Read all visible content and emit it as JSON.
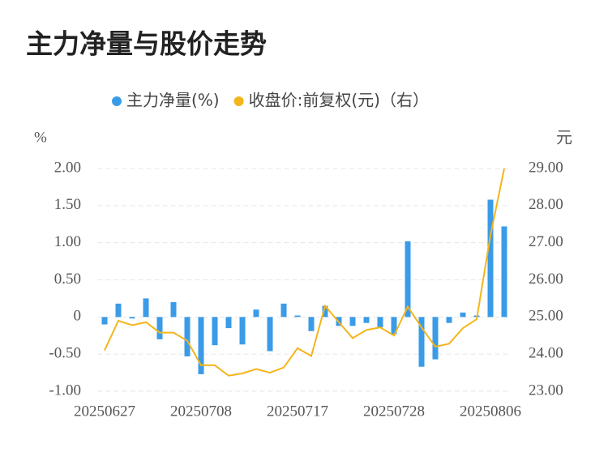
{
  "chart_data": {
    "type": "bar_line",
    "title": "主力净量与股价走势",
    "ylabel": "%",
    "y2label": "元",
    "categories": [
      "20250627",
      null,
      null,
      null,
      null,
      null,
      null,
      "20250708",
      null,
      null,
      null,
      null,
      null,
      null,
      "20250717",
      null,
      null,
      null,
      null,
      null,
      null,
      "20250728",
      null,
      null,
      null,
      null,
      null,
      null,
      "20250806",
      null
    ],
    "series": [
      {
        "name": "主力净量(%)",
        "type": "bar",
        "color": "#3a9be8",
        "values": [
          -0.1,
          0.18,
          -0.02,
          0.25,
          -0.3,
          0.2,
          -0.53,
          -0.77,
          -0.38,
          -0.15,
          -0.37,
          0.1,
          -0.46,
          0.18,
          0.02,
          -0.19,
          0.15,
          -0.12,
          -0.12,
          -0.08,
          -0.14,
          -0.23,
          1.02,
          -0.67,
          -0.57,
          -0.08,
          0.06,
          0.02,
          1.58,
          1.22
        ]
      },
      {
        "name": "收盘价:前复权(元)（右）",
        "type": "line",
        "axis": "y2",
        "color": "#f4b51c",
        "values": [
          24.1,
          24.9,
          24.78,
          24.86,
          24.58,
          24.58,
          24.36,
          23.7,
          23.7,
          23.42,
          23.48,
          23.6,
          23.5,
          23.64,
          24.16,
          23.95,
          25.3,
          24.86,
          24.43,
          24.65,
          24.72,
          24.5,
          25.28,
          24.72,
          24.2,
          24.28,
          24.7,
          24.94,
          27.2,
          29.0
        ]
      }
    ],
    "ylim": [
      -1,
      2
    ],
    "yticks": [
      {
        "value": -1,
        "label": "-1.00"
      },
      {
        "value": -0.5,
        "label": "-0.50"
      },
      0,
      {
        "value": 0.5,
        "label": "0.50"
      },
      {
        "value": 1,
        "label": "1.00"
      },
      {
        "value": 1.5,
        "label": "1.50"
      },
      {
        "value": 2,
        "label": "2.00"
      }
    ],
    "y2lim": [
      23,
      29
    ],
    "y2ticks": [
      {
        "value": 23,
        "label": "23.00"
      },
      {
        "value": 24,
        "label": "24.00"
      },
      {
        "value": 25,
        "label": "25.00"
      },
      {
        "value": 26,
        "label": "26.00"
      },
      {
        "value": 27,
        "label": "27.00"
      },
      {
        "value": 28,
        "label": "28.00"
      },
      {
        "value": 29,
        "label": "29.00"
      }
    ],
    "grid": true,
    "legend": "top"
  }
}
